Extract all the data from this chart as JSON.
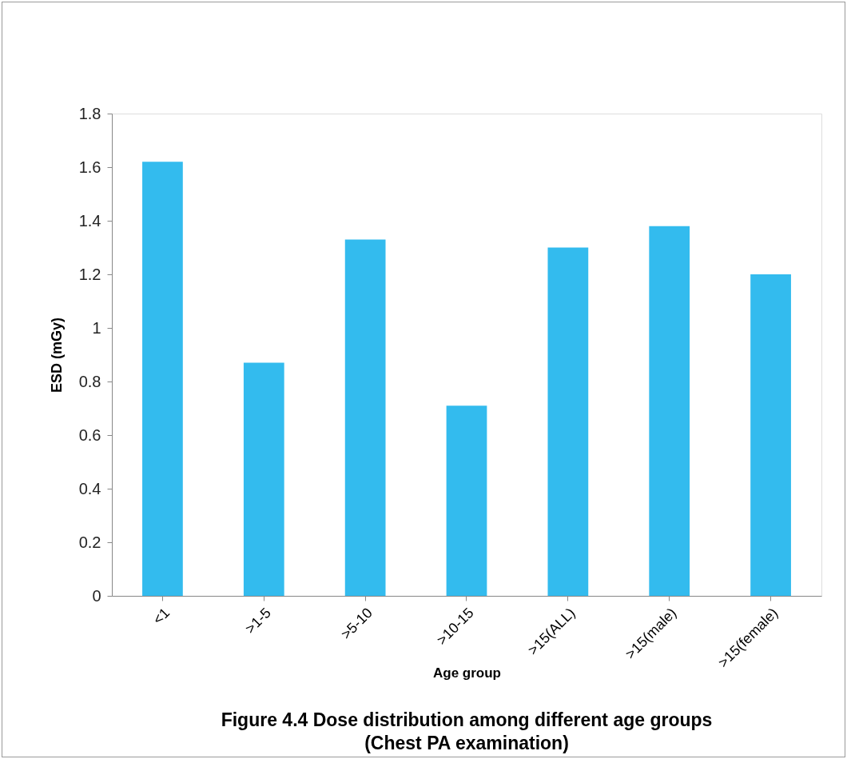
{
  "chart_data": {
    "type": "bar",
    "title": "Figure 4.4 Dose distribution among different age groups",
    "subtitle": "(Chest PA examination)",
    "xlabel": "Age group",
    "ylabel": "ESD (mGy)",
    "categories": [
      "<1",
      ">1-5",
      ">5-10",
      ">10-15",
      ">15(ALL)",
      ">15(male)",
      ">15(female)"
    ],
    "values": [
      1.62,
      0.87,
      1.33,
      0.71,
      1.3,
      1.38,
      1.2
    ],
    "color": "#33bbee",
    "ylim": [
      0,
      1.8
    ],
    "yticks": [
      0,
      0.2,
      0.4,
      0.6,
      0.8,
      1,
      1.2,
      1.4,
      1.6,
      1.8
    ],
    "grid": false,
    "legend": false
  }
}
